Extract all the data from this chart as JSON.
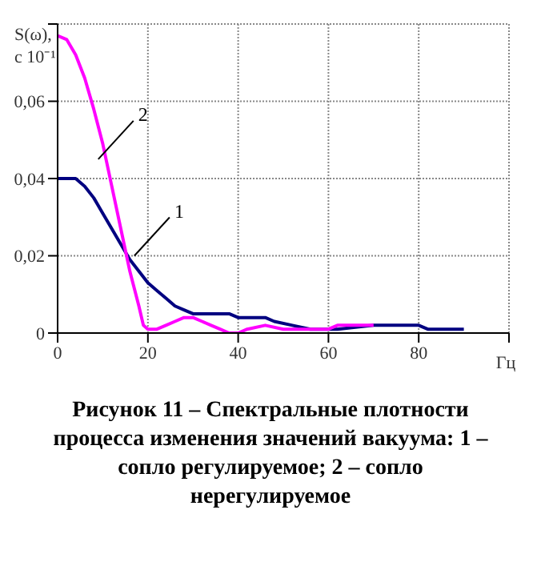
{
  "chart_data": {
    "type": "line",
    "ylabel": "S(ω),\nс 10⁻¹",
    "xlabel": "Гц",
    "xlim": [
      0,
      100
    ],
    "xticks": [
      0,
      20,
      40,
      60,
      80,
      {
        "value": 100,
        "label": null
      }
    ],
    "ylim": [
      0,
      0.08
    ],
    "yticks": [
      {
        "value": 0,
        "label": "0"
      },
      {
        "value": 0.02,
        "label": "0,02"
      },
      {
        "value": 0.04,
        "label": "0,04"
      },
      {
        "value": 0.06,
        "label": "0,06"
      },
      {
        "value": 0.08,
        "label": null
      }
    ],
    "grid": true,
    "marker": "none",
    "line_style": "solid",
    "series": [
      {
        "color": "#000080",
        "x": [
          0,
          4,
          6,
          8,
          10,
          12,
          14,
          16,
          18,
          20,
          22,
          24,
          26,
          28,
          30,
          38,
          40,
          46,
          48,
          52,
          56,
          62,
          70,
          80,
          82,
          90
        ],
        "values": [
          0.04,
          0.04,
          0.038,
          0.035,
          0.031,
          0.027,
          0.023,
          0.019,
          0.016,
          0.013,
          0.011,
          0.009,
          0.007,
          0.006,
          0.005,
          0.005,
          0.004,
          0.004,
          0.003,
          0.002,
          0.001,
          0.001,
          0.002,
          0.002,
          0.001,
          0.001
        ]
      },
      {
        "color": "#ff00ff",
        "x": [
          0,
          2,
          4,
          6,
          8,
          10,
          12,
          14,
          16,
          18,
          19,
          20,
          22,
          24,
          26,
          28,
          30,
          32,
          34,
          36,
          38,
          40,
          42,
          46,
          50,
          60,
          62,
          70
        ],
        "values": [
          0.077,
          0.076,
          0.072,
          0.066,
          0.058,
          0.049,
          0.038,
          0.027,
          0.016,
          0.007,
          0.002,
          0.001,
          0.001,
          0.002,
          0.003,
          0.004,
          0.004,
          0.003,
          0.002,
          0.001,
          0,
          0,
          0.001,
          0.002,
          0.001,
          0.001,
          0.002,
          0.002
        ]
      }
    ],
    "annotations": [
      {
        "text": "1",
        "x": 17,
        "y": 0.02
      },
      {
        "text": "2",
        "x": 9,
        "y": 0.045
      },
      "Рисунок 11 – Спектральные плотности процесса изменения значений вакуума: 1 – сопло регулируемое; 2 – сопло нерегулируемое"
    ]
  }
}
